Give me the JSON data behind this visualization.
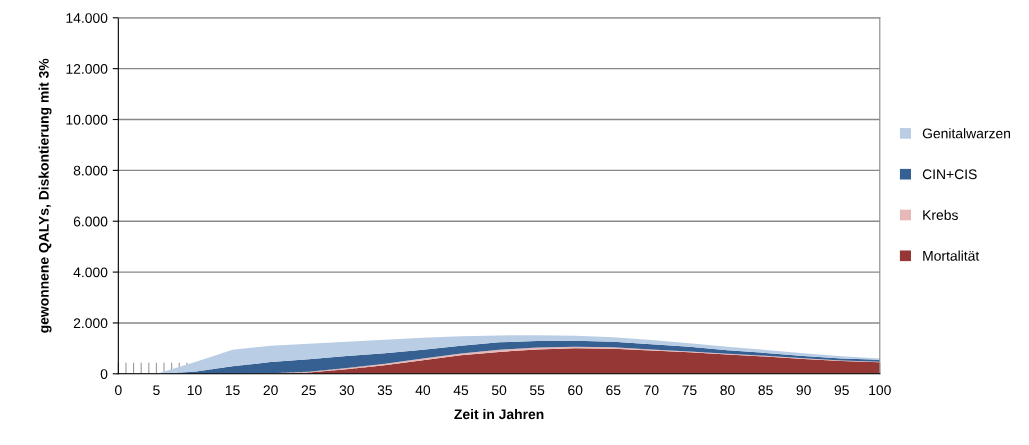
{
  "chart_data": {
    "type": "area",
    "stacked": true,
    "xlabel": "Zeit in Jahren",
    "ylabel": "gewonnene QALYs, Diskontierung mit 3%",
    "x": [
      0,
      5,
      10,
      15,
      20,
      25,
      30,
      35,
      40,
      45,
      50,
      55,
      60,
      65,
      70,
      75,
      80,
      85,
      90,
      95,
      100
    ],
    "series": [
      {
        "name": "Mortalität",
        "color": "#953735",
        "values": [
          0,
          0,
          0,
          0,
          10,
          50,
          180,
          340,
          530,
          730,
          860,
          960,
          1000,
          990,
          920,
          850,
          760,
          680,
          580,
          500,
          450
        ]
      },
      {
        "name": "Krebs",
        "color": "#e6b9b8",
        "values": [
          0,
          0,
          0,
          0,
          10,
          30,
          50,
          60,
          70,
          70,
          90,
          70,
          60,
          50,
          40,
          30,
          30,
          30,
          30,
          20,
          20
        ]
      },
      {
        "name": "CIN+CIS",
        "color": "#376092",
        "values": [
          0,
          0,
          80,
          300,
          440,
          490,
          470,
          410,
          350,
          300,
          290,
          260,
          240,
          220,
          200,
          180,
          140,
          110,
          90,
          80,
          80
        ]
      },
      {
        "name": "Genitalwarzen",
        "color": "#b9cde5",
        "values": [
          0,
          0,
          370,
          650,
          640,
          610,
          560,
          530,
          470,
          380,
          270,
          230,
          200,
          180,
          170,
          140,
          130,
          120,
          110,
          90,
          50
        ]
      }
    ],
    "xlim": [
      0,
      100
    ],
    "xticks": [
      0,
      {
        "value": 1,
        "label": null
      },
      {
        "value": 2,
        "label": null
      },
      {
        "value": 3,
        "label": null
      },
      {
        "value": 4,
        "label": null
      },
      5,
      {
        "value": 6,
        "label": null
      },
      {
        "value": 7,
        "label": null
      },
      {
        "value": 8,
        "label": null
      },
      {
        "value": 9,
        "label": null
      },
      10,
      {
        "value": 11,
        "label": null
      },
      {
        "value": 12,
        "label": null
      },
      {
        "value": 13,
        "label": null
      },
      {
        "value": 14,
        "label": null
      },
      15,
      {
        "value": 16,
        "label": null
      },
      {
        "value": 17,
        "label": null
      },
      {
        "value": 18,
        "label": null
      },
      {
        "value": 19,
        "label": null
      },
      20,
      {
        "value": 21,
        "label": null
      },
      {
        "value": 22,
        "label": null
      },
      {
        "value": 23,
        "label": null
      },
      {
        "value": 24,
        "label": null
      },
      25,
      {
        "value": 26,
        "label": null
      },
      {
        "value": 27,
        "label": null
      },
      {
        "value": 28,
        "label": null
      },
      {
        "value": 29,
        "label": null
      },
      30,
      {
        "value": 31,
        "label": null
      },
      {
        "value": 32,
        "label": null
      },
      {
        "value": 33,
        "label": null
      },
      {
        "value": 34,
        "label": null
      },
      35,
      {
        "value": 36,
        "label": null
      },
      {
        "value": 37,
        "label": null
      },
      {
        "value": 38,
        "label": null
      },
      {
        "value": 39,
        "label": null
      },
      40,
      {
        "value": 41,
        "label": null
      },
      {
        "value": 42,
        "label": null
      },
      {
        "value": 43,
        "label": null
      },
      {
        "value": 44,
        "label": null
      },
      45,
      {
        "value": 46,
        "label": null
      },
      {
        "value": 47,
        "label": null
      },
      {
        "value": 48,
        "label": null
      },
      {
        "value": 49,
        "label": null
      },
      50,
      {
        "value": 51,
        "label": null
      },
      {
        "value": 52,
        "label": null
      },
      {
        "value": 53,
        "label": null
      },
      {
        "value": 54,
        "label": null
      },
      55,
      {
        "value": 56,
        "label": null
      },
      {
        "value": 57,
        "label": null
      },
      {
        "value": 58,
        "label": null
      },
      {
        "value": 59,
        "label": null
      },
      60,
      {
        "value": 61,
        "label": null
      },
      {
        "value": 62,
        "label": null
      },
      {
        "value": 63,
        "label": null
      },
      {
        "value": 64,
        "label": null
      },
      65,
      {
        "value": 66,
        "label": null
      },
      {
        "value": 67,
        "label": null
      },
      {
        "value": 68,
        "label": null
      },
      {
        "value": 69,
        "label": null
      },
      70,
      {
        "value": 71,
        "label": null
      },
      {
        "value": 72,
        "label": null
      },
      {
        "value": 73,
        "label": null
      },
      {
        "value": 74,
        "label": null
      },
      75,
      {
        "value": 76,
        "label": null
      },
      {
        "value": 77,
        "label": null
      },
      {
        "value": 78,
        "label": null
      },
      {
        "value": 79,
        "label": null
      },
      80,
      {
        "value": 81,
        "label": null
      },
      {
        "value": 82,
        "label": null
      },
      {
        "value": 83,
        "label": null
      },
      {
        "value": 84,
        "label": null
      },
      85,
      {
        "value": 86,
        "label": null
      },
      {
        "value": 87,
        "label": null
      },
      {
        "value": 88,
        "label": null
      },
      {
        "value": 89,
        "label": null
      },
      90,
      {
        "value": 91,
        "label": null
      },
      {
        "value": 92,
        "label": null
      },
      {
        "value": 93,
        "label": null
      },
      {
        "value": 94,
        "label": null
      },
      95,
      {
        "value": 96,
        "label": null
      },
      {
        "value": 97,
        "label": null
      },
      {
        "value": 98,
        "label": null
      },
      {
        "value": 99,
        "label": null
      },
      100
    ],
    "ylim": [
      0,
      14000
    ],
    "yticks": [
      0,
      {
        "value": 2000,
        "label": "2.000"
      },
      {
        "value": 4000,
        "label": "4.000"
      },
      {
        "value": 6000,
        "label": "6.000"
      },
      {
        "value": 8000,
        "label": "8.000"
      },
      {
        "value": 10000,
        "label": "10.000"
      },
      {
        "value": 12000,
        "label": "12.000"
      },
      {
        "value": 14000,
        "label": "14.000"
      }
    ],
    "grid": "y",
    "legend": "right"
  }
}
